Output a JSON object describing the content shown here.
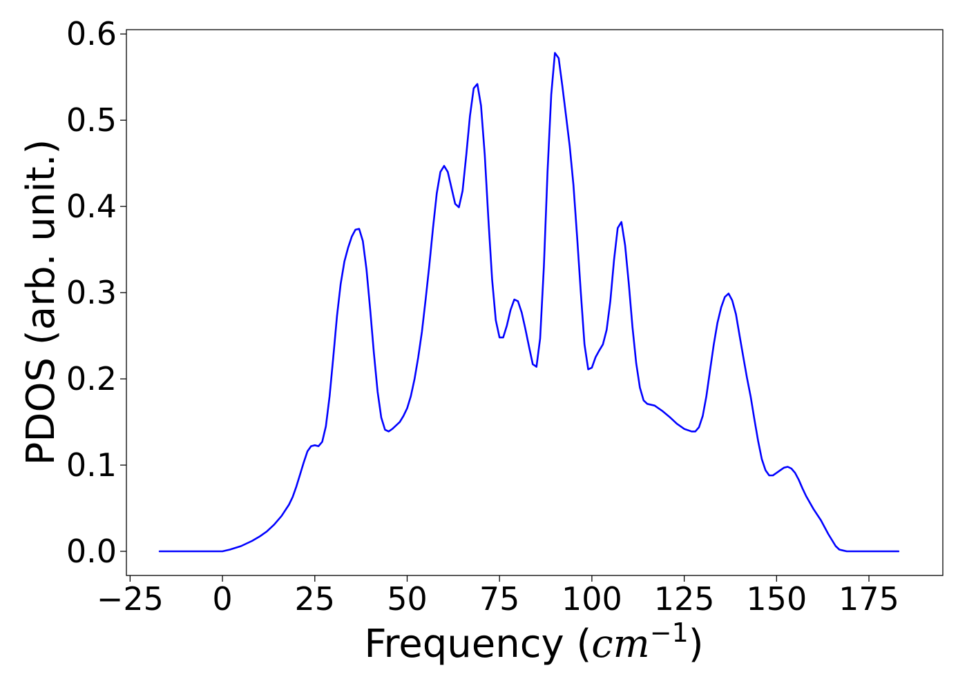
{
  "chart_data": {
    "type": "line",
    "xlabel": "Frequency (cm⁻¹)",
    "xlabel_parts": {
      "prefix": "Frequency (",
      "unit": "cm",
      "exponent": "−1",
      "suffix": ")"
    },
    "ylabel": "PDOS (arb. unit.)",
    "xlim": [
      -26,
      195
    ],
    "ylim": [
      -0.028,
      0.605
    ],
    "xticks": [
      -25,
      0,
      25,
      50,
      75,
      100,
      125,
      150,
      175
    ],
    "xtick_labels": [
      "−25",
      "0",
      "25",
      "50",
      "75",
      "100",
      "125",
      "150",
      "175"
    ],
    "yticks": [
      0.0,
      0.1,
      0.2,
      0.3,
      0.4,
      0.5,
      0.6
    ],
    "ytick_labels": [
      "0.0",
      "0.1",
      "0.2",
      "0.3",
      "0.4",
      "0.5",
      "0.6"
    ],
    "grid": false,
    "series": [
      {
        "color": "#0000ff",
        "x": [
          -17,
          -10,
          0,
          2,
          5,
          8,
          10,
          12,
          14,
          16,
          18,
          19,
          20,
          21,
          22,
          23,
          24,
          25,
          26,
          27,
          28,
          29,
          30,
          31,
          32,
          33,
          34,
          35,
          36,
          37,
          38,
          39,
          40,
          41,
          42,
          43,
          44,
          45,
          46,
          48,
          49,
          50,
          51,
          52,
          53,
          54,
          55,
          56,
          57,
          58,
          59,
          60,
          61,
          63,
          64,
          65,
          66,
          67,
          68,
          69,
          70,
          71,
          72,
          73,
          74,
          75,
          76,
          77,
          78,
          79,
          80,
          81,
          82,
          83,
          84,
          85,
          86,
          87,
          88,
          89,
          90,
          91,
          92,
          93,
          94,
          95,
          96,
          97,
          98,
          99,
          100,
          101,
          102,
          103,
          104,
          105,
          106,
          107,
          108,
          109,
          110,
          111,
          112,
          113,
          114,
          115,
          117,
          119,
          121,
          123,
          125,
          127,
          128,
          129,
          130,
          131,
          132,
          133,
          134,
          135,
          136,
          137,
          138,
          139,
          140,
          141,
          142,
          143,
          144,
          145,
          146,
          147,
          148,
          149,
          150,
          151,
          152,
          153,
          154,
          155,
          156,
          157,
          158,
          160,
          162,
          164,
          166,
          167,
          168,
          169,
          170,
          172,
          183
        ],
        "y": [
          0.0,
          0.0,
          0.0,
          0.002,
          0.006,
          0.012,
          0.017,
          0.023,
          0.031,
          0.041,
          0.054,
          0.063,
          0.075,
          0.089,
          0.103,
          0.116,
          0.122,
          0.123,
          0.122,
          0.127,
          0.145,
          0.18,
          0.225,
          0.273,
          0.31,
          0.336,
          0.352,
          0.365,
          0.373,
          0.374,
          0.36,
          0.327,
          0.28,
          0.23,
          0.185,
          0.155,
          0.141,
          0.139,
          0.142,
          0.15,
          0.157,
          0.166,
          0.18,
          0.2,
          0.225,
          0.255,
          0.292,
          0.332,
          0.375,
          0.415,
          0.44,
          0.447,
          0.44,
          0.403,
          0.399,
          0.418,
          0.46,
          0.505,
          0.537,
          0.542,
          0.517,
          0.46,
          0.385,
          0.315,
          0.268,
          0.248,
          0.248,
          0.262,
          0.28,
          0.292,
          0.29,
          0.277,
          0.258,
          0.237,
          0.217,
          0.214,
          0.247,
          0.33,
          0.44,
          0.53,
          0.578,
          0.572,
          0.54,
          0.505,
          0.47,
          0.425,
          0.365,
          0.3,
          0.24,
          0.211,
          0.213,
          0.225,
          0.233,
          0.24,
          0.257,
          0.29,
          0.338,
          0.375,
          0.382,
          0.355,
          0.31,
          0.26,
          0.218,
          0.19,
          0.175,
          0.171,
          0.169,
          0.163,
          0.156,
          0.148,
          0.142,
          0.139,
          0.139,
          0.144,
          0.157,
          0.18,
          0.21,
          0.24,
          0.265,
          0.283,
          0.295,
          0.299,
          0.291,
          0.275,
          0.25,
          0.225,
          0.201,
          0.179,
          0.153,
          0.128,
          0.107,
          0.094,
          0.088,
          0.088,
          0.091,
          0.094,
          0.097,
          0.098,
          0.096,
          0.091,
          0.083,
          0.073,
          0.064,
          0.049,
          0.036,
          0.02,
          0.006,
          0.002,
          0.001,
          0.0,
          0.0,
          0.0,
          0.0
        ]
      }
    ]
  }
}
